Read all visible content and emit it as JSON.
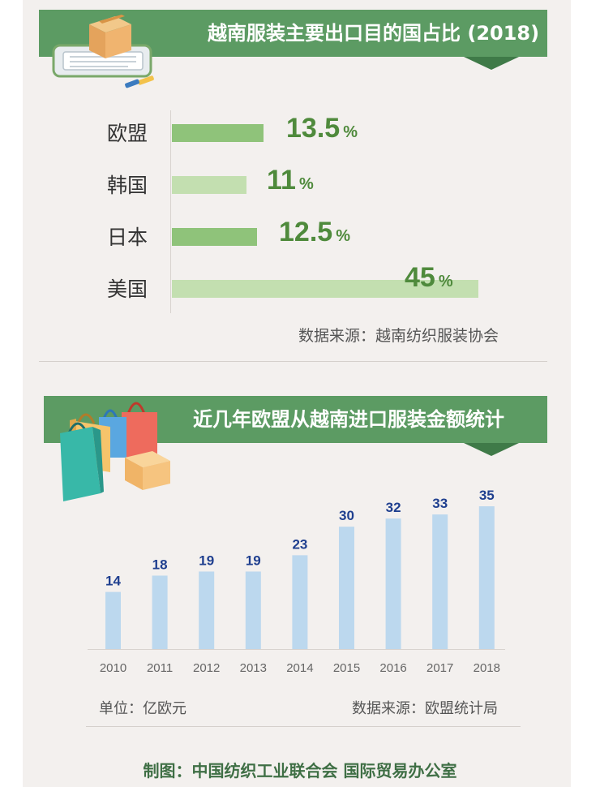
{
  "colors": {
    "banner": "#5c9b63",
    "bar_dark": "#8fc37a",
    "bar_light": "#c3dfb0",
    "value_text": "#4f8a3c",
    "column": "#bcd8ee",
    "column_label": "#1f3f8f"
  },
  "section1": {
    "title": "越南服装主要出口目的国占比 (2018)",
    "source": "数据来源：越南纺织服装协会",
    "chart_data": {
      "type": "bar",
      "orientation": "horizontal",
      "categories": [
        "欧盟",
        "韩国",
        "日本",
        "美国"
      ],
      "values": [
        13.5,
        11,
        12.5,
        45
      ],
      "unit": "%"
    }
  },
  "section2": {
    "title": "近几年欧盟从越南进口服装金额统计",
    "unit_note": "单位：亿欧元",
    "source": "数据来源：欧盟统计局",
    "chart_data": {
      "type": "bar",
      "categories": [
        "2010",
        "2011",
        "2012",
        "2013",
        "2014",
        "2015",
        "2016",
        "2017",
        "2018"
      ],
      "values": [
        14,
        18,
        19,
        19,
        23,
        30,
        32,
        33,
        35
      ],
      "ylim": [
        0,
        35
      ]
    }
  },
  "footer": "制图：中国纺织工业联合会 国际贸易办公室"
}
